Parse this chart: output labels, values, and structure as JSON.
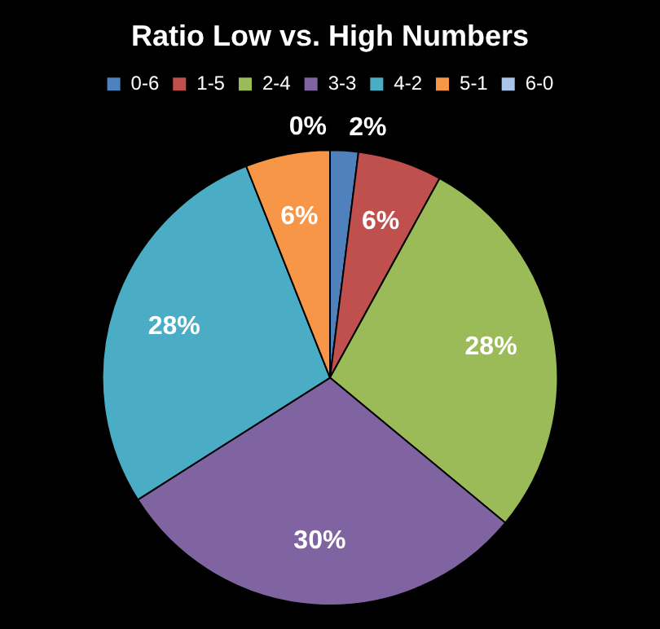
{
  "chart_data": {
    "type": "pie",
    "title": "Ratio Low vs. High Numbers",
    "categories": [
      "0-6",
      "1-5",
      "2-4",
      "3-3",
      "4-2",
      "5-1",
      "6-0"
    ],
    "values": [
      2,
      6,
      28,
      30,
      28,
      6,
      0
    ],
    "value_labels": [
      "2%",
      "6%",
      "28%",
      "30%",
      "28%",
      "6%",
      "0%"
    ],
    "colors": [
      "#4f81bd",
      "#c0504d",
      "#9bbb59",
      "#8064a2",
      "#4bacc6",
      "#f79646",
      "#a9c4eb"
    ],
    "legend": "top"
  }
}
